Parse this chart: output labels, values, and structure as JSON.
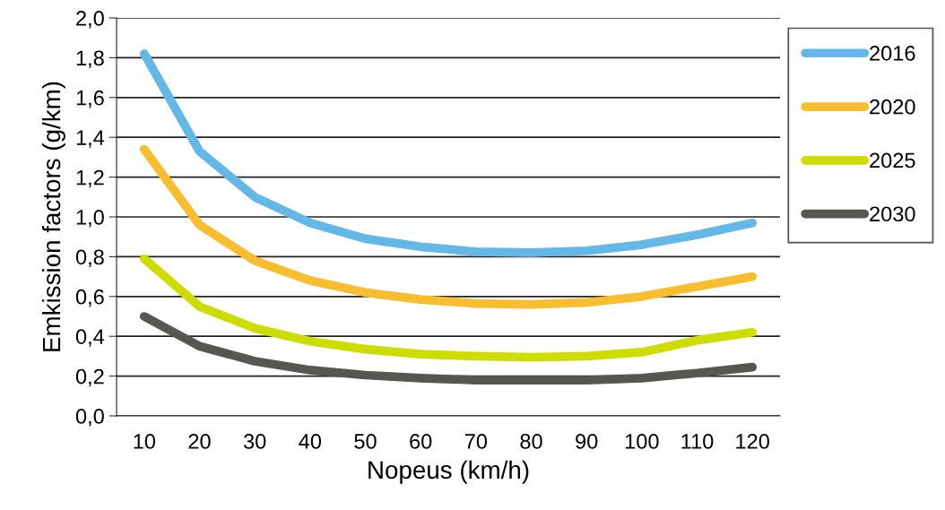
{
  "chart_data": {
    "type": "line",
    "xlabel": "Nopeus (km/h)",
    "ylabel": "Emkission factors (g/km)",
    "categories": [
      "10",
      "20",
      "30",
      "40",
      "50",
      "60",
      "70",
      "80",
      "90",
      "100",
      "110",
      "120"
    ],
    "series": [
      {
        "name": "2016",
        "color": "#63b8e8",
        "values": [
          1.82,
          1.33,
          1.1,
          0.97,
          0.89,
          0.85,
          0.825,
          0.82,
          0.83,
          0.86,
          0.91,
          0.97
        ]
      },
      {
        "name": "2020",
        "color": "#f9bd30",
        "values": [
          1.34,
          0.96,
          0.78,
          0.68,
          0.62,
          0.585,
          0.565,
          0.56,
          0.57,
          0.6,
          0.65,
          0.7
        ]
      },
      {
        "name": "2025",
        "color": "#cedd00",
        "values": [
          0.79,
          0.55,
          0.44,
          0.375,
          0.335,
          0.31,
          0.3,
          0.295,
          0.3,
          0.32,
          0.38,
          0.42
        ]
      },
      {
        "name": "2030",
        "color": "#545851",
        "values": [
          0.5,
          0.35,
          0.275,
          0.23,
          0.205,
          0.19,
          0.18,
          0.18,
          0.18,
          0.19,
          0.215,
          0.245
        ]
      }
    ],
    "ylim": [
      0,
      2.0
    ],
    "yticks": [
      {
        "value": 0,
        "label": "0,0"
      },
      {
        "value": 0.2,
        "label": "0,2"
      },
      {
        "value": 0.4,
        "label": "0,4"
      },
      {
        "value": 0.6,
        "label": "0,6"
      },
      {
        "value": 0.8,
        "label": "0,8"
      },
      {
        "value": 1.0,
        "label": "1,0"
      },
      {
        "value": 1.2,
        "label": "1,2"
      },
      {
        "value": 1.4,
        "label": "1,4"
      },
      {
        "value": 1.6,
        "label": "1,6"
      },
      {
        "value": 1.8,
        "label": "1,8"
      },
      {
        "value": 2.0,
        "label": "2,0"
      }
    ],
    "grid": "y",
    "legend": "right",
    "marker": "none",
    "line_style": "solid"
  }
}
